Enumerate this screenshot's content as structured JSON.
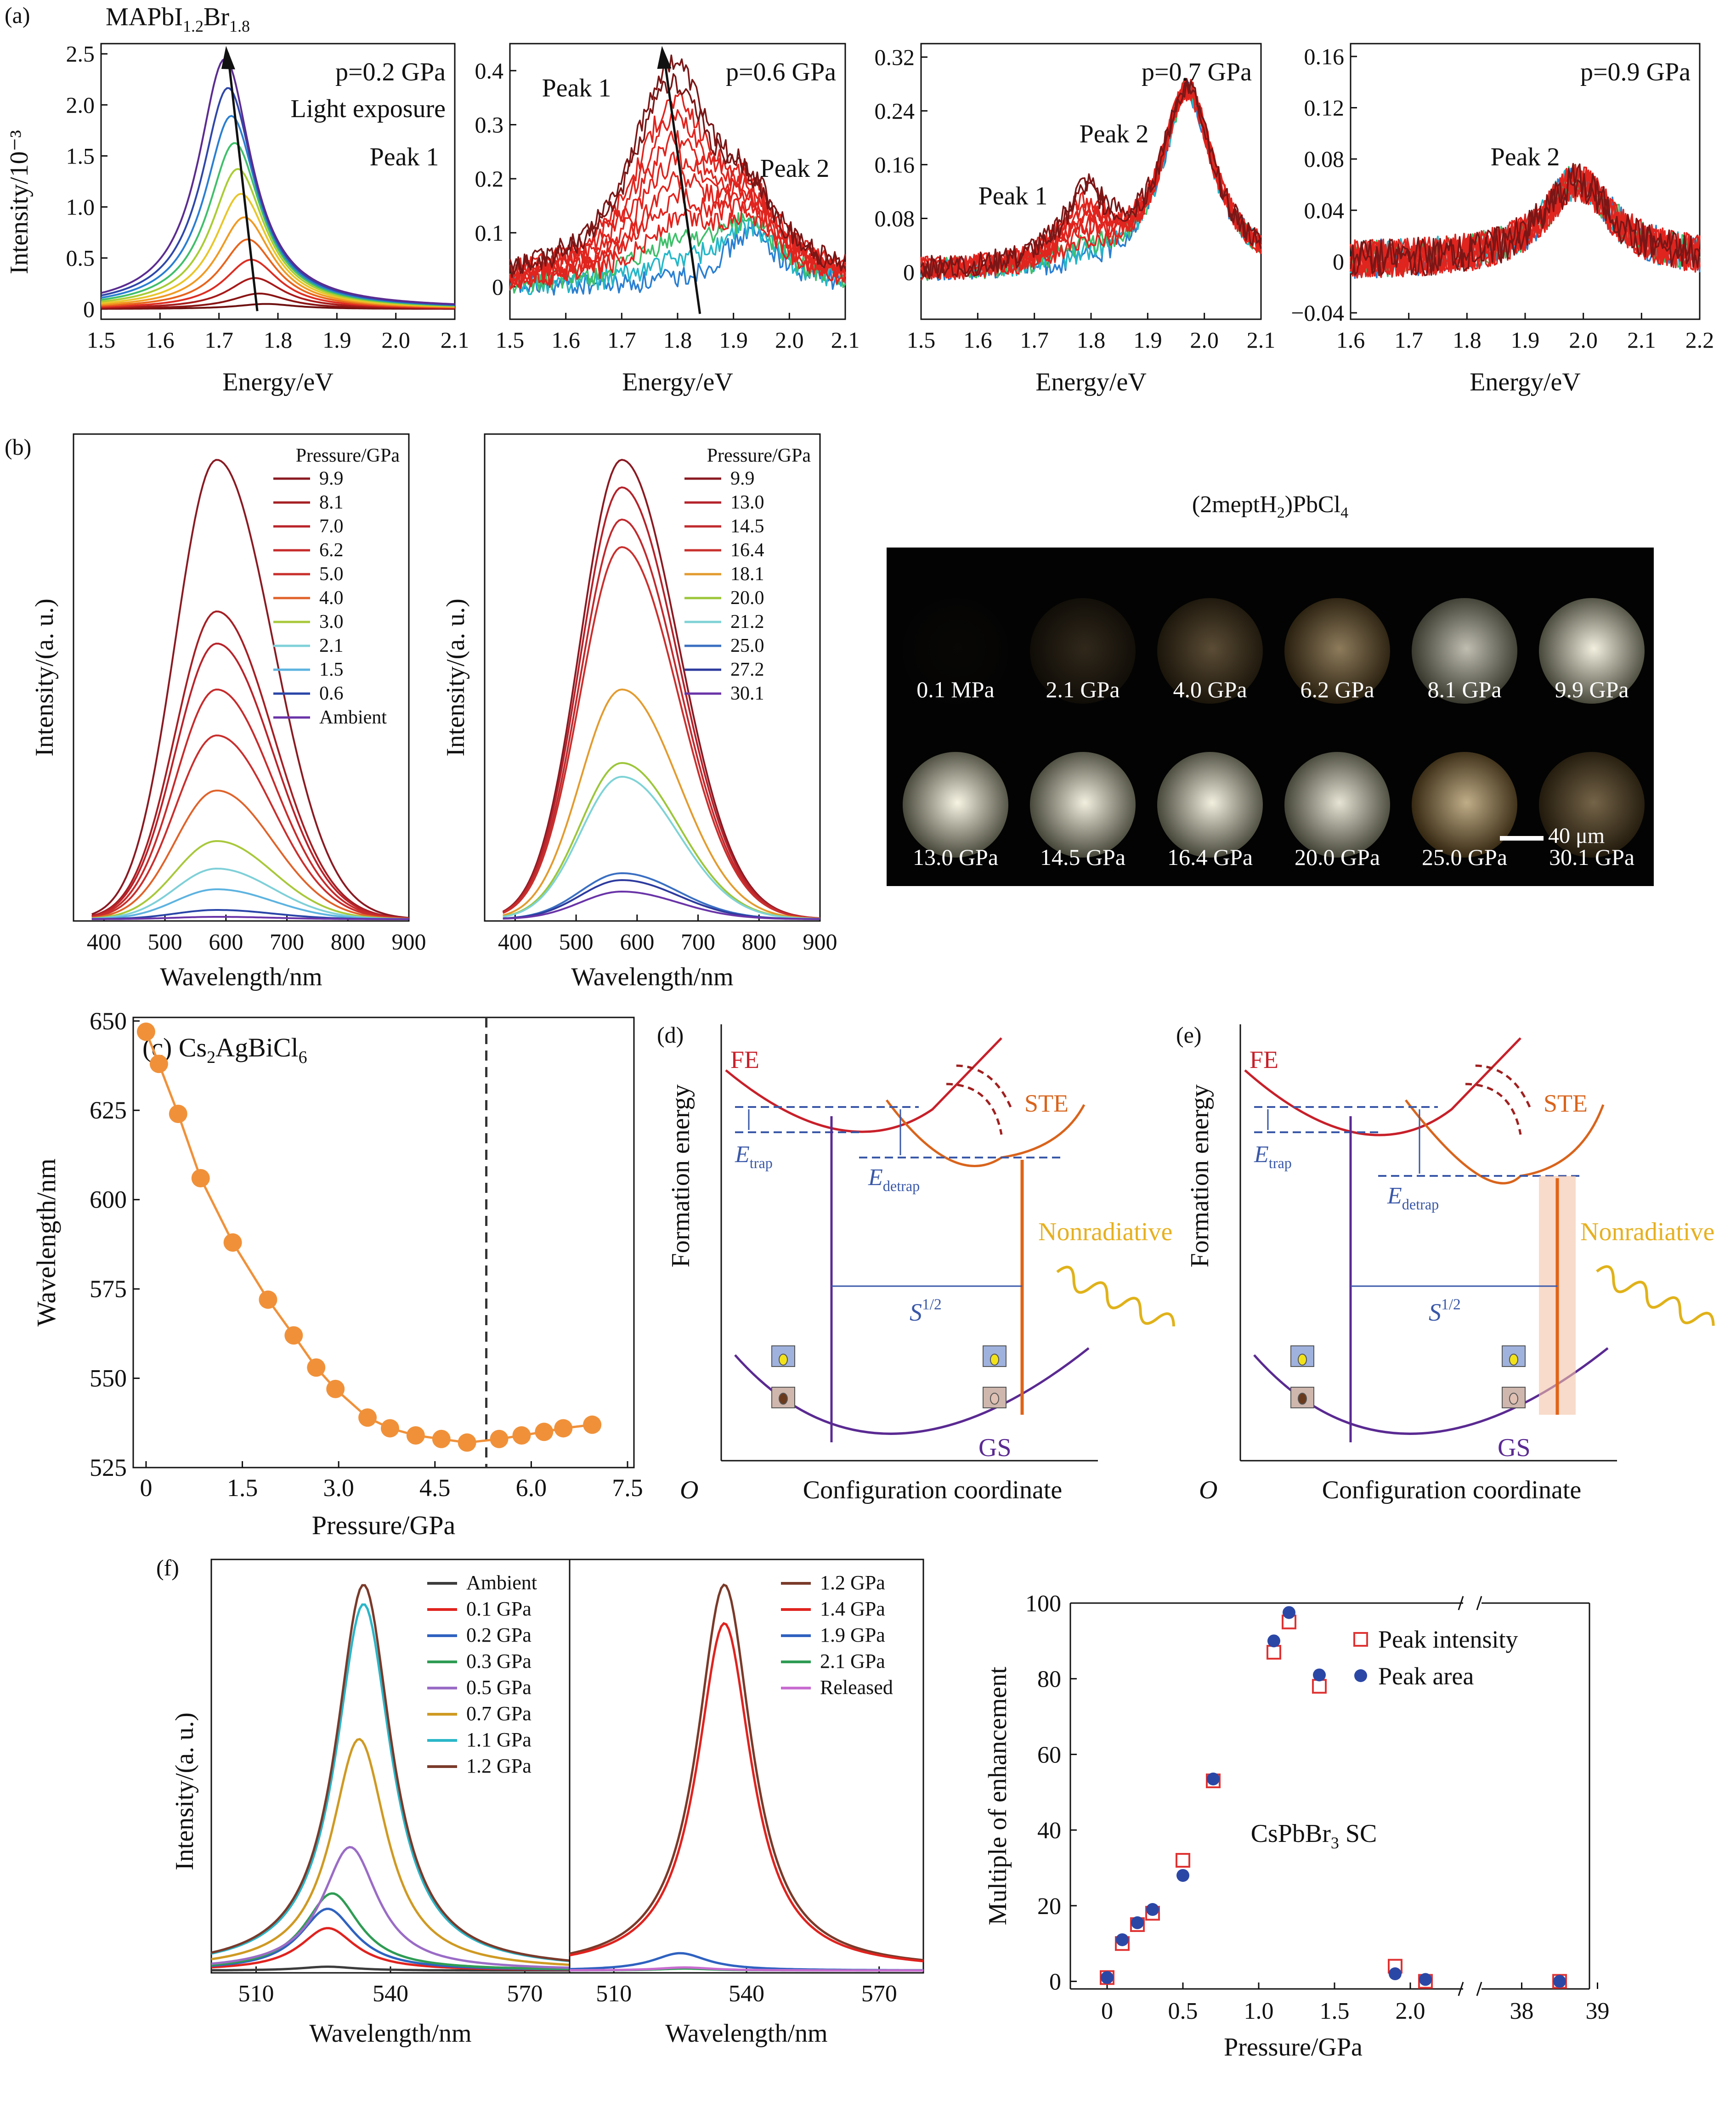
{
  "panel_labels": {
    "a": "(a)",
    "b": "(b)",
    "c": "(c) Cs₂AgBiCl₆",
    "d": "(d)",
    "e": "(e)",
    "f": "(f)"
  },
  "panel_a": {
    "material": "MAPbI₁.₂Br₁.₈",
    "ylabel": "Intensity/10⁻³",
    "xlabel": "Energy/eV",
    "subplots": [
      {
        "pressure": "p=0.2 GPa",
        "notes": [
          "Light exposure",
          "Peak 1"
        ],
        "xticks": [
          "1.5",
          "1.6",
          "1.7",
          "1.8",
          "1.9",
          "2.0",
          "2.1"
        ],
        "yticks": [
          "0",
          "0.5",
          "1.0",
          "1.5",
          "2.0",
          "2.5"
        ]
      },
      {
        "pressure": "p=0.6 GPa",
        "notes": [
          "Peak 1",
          "Peak 2"
        ],
        "xticks": [
          "1.5",
          "1.6",
          "1.7",
          "1.8",
          "1.9",
          "2.0",
          "2.1"
        ],
        "yticks": [
          "0",
          "0.1",
          "0.2",
          "0.3",
          "0.4"
        ]
      },
      {
        "pressure": "p=0.7 GPa",
        "notes": [
          "Peak 1",
          "Peak 2"
        ],
        "xticks": [
          "1.5",
          "1.6",
          "1.7",
          "1.8",
          "1.9",
          "2.0",
          "2.1"
        ],
        "yticks": [
          "0",
          "0.08",
          "0.16",
          "0.24",
          "0.32"
        ]
      },
      {
        "pressure": "p=0.9 GPa",
        "notes": [
          "Peak 2"
        ],
        "xticks": [
          "1.6",
          "1.7",
          "1.8",
          "1.9",
          "2.0",
          "2.1",
          "2.2"
        ],
        "yticks": [
          "−0.04",
          "0",
          "0.04",
          "0.08",
          "0.12",
          "0.16"
        ]
      }
    ]
  },
  "panel_b": {
    "ylabel": "Intensity/(a. u.)",
    "xlabel": "Wavelength/nm",
    "xticks": [
      "400",
      "500",
      "600",
      "700",
      "800",
      "900"
    ],
    "legend_title": "Pressure/GPa",
    "left_legend": [
      "9.9",
      "8.1",
      "7.0",
      "6.2",
      "5.0",
      "4.0",
      "3.0",
      "2.1",
      "1.5",
      "0.6",
      "Ambient"
    ],
    "right_legend": [
      "9.9",
      "13.0",
      "14.5",
      "16.4",
      "18.1",
      "20.0",
      "21.2",
      "25.0",
      "27.2",
      "30.1"
    ],
    "photo_title": "(2meptH₂)PbCl₄",
    "photo_captions": [
      "0.1 MPa",
      "2.1 GPa",
      "4.0 GPa",
      "6.2 GPa",
      "8.1 GPa",
      "9.9 GPa",
      "13.0 GPa",
      "14.5 GPa",
      "16.4 GPa",
      "20.0 GPa",
      "25.0 GPa",
      "30.1 GPa"
    ],
    "scale_bar": "40 μm"
  },
  "panel_c": {
    "ylabel": "Wavelength/nm",
    "xlabel": "Pressure/GPa",
    "xticks": [
      "0",
      "1.5",
      "3.0",
      "4.5",
      "6.0",
      "7.5"
    ],
    "yticks": [
      "525",
      "550",
      "575",
      "600",
      "625",
      "650"
    ]
  },
  "panel_de": {
    "ylabel": "Formation energy",
    "xlabel": "Configuration coordinate",
    "origin": "O",
    "fe": "FE",
    "ste": "STE",
    "gs": "GS",
    "etrap": "E",
    "etrap_sub": "trap",
    "edetrap": "E",
    "edetrap_sub": "detrap",
    "s": "S",
    "s_sup": "1/2",
    "nonrad": "Nonradiative"
  },
  "panel_f": {
    "ylabel": "Intensity/(a. u.)",
    "xlabel": "Wavelength/nm",
    "xticks": [
      "510",
      "540",
      "570"
    ],
    "left_legend": [
      "Ambient",
      "0.1 GPa",
      "0.2 GPa",
      "0.3 GPa",
      "0.5 GPa",
      "0.7 GPa",
      "1.1 GPa",
      "1.2 GPa"
    ],
    "right_legend": [
      "1.2 GPa",
      "1.4 GPa",
      "1.9 GPa",
      "2.1 GPa",
      "Released"
    ],
    "enh_ylabel": "Multiple of enhancement",
    "enh_xlabel": "Pressure/GPa",
    "enh_note": "CsPbBr₃ SC",
    "enh_legend": [
      "Peak intensity",
      "Peak area"
    ],
    "enh_xticks": [
      "0",
      "0.5",
      "1.0",
      "1.5",
      "2.0",
      "38",
      "39"
    ],
    "enh_yticks": [
      "0",
      "20",
      "40",
      "60",
      "80",
      "100"
    ]
  },
  "colors": {
    "fe": "#c8202a",
    "ste": "#d9641c",
    "gs": "#5a2a92",
    "trap": "#3a58a8",
    "nonrad": "#e6b020",
    "orange_pts": "#f0913a"
  },
  "chart_data": [
    {
      "type": "line",
      "title": "",
      "xlabel": "Energy/eV",
      "ylabel": "Intensity/10⁻³",
      "xlim": [
        1.5,
        2.1
      ],
      "ylim": [
        -0.1,
        2.6
      ],
      "series_note": "p=0.2 GPa, light exposure",
      "peak_energy_start": 1.71,
      "peak_energy_end": 1.77,
      "peak_max": 2.45
    },
    {
      "type": "line",
      "title": "",
      "xlabel": "Energy/eV",
      "ylabel": "Intensity/10⁻³",
      "xlim": [
        1.5,
        2.1
      ],
      "ylim": [
        -0.06,
        0.45
      ],
      "series_note": "p=0.6 GPa",
      "peak1_energy": 1.79,
      "peak1_max": 0.4,
      "peak2_energy": 1.93,
      "peak2_max": 0.1
    },
    {
      "type": "line",
      "title": "",
      "xlabel": "Energy/eV",
      "ylabel": "Intensity/10⁻³",
      "xlim": [
        1.5,
        2.1
      ],
      "ylim": [
        -0.07,
        0.34
      ],
      "series_note": "p=0.7 GPa",
      "peak1_energy": 1.79,
      "peak1_max": 0.11,
      "peak2_energy": 1.97,
      "peak2_max": 0.27
    },
    {
      "type": "line",
      "title": "",
      "xlabel": "Energy/eV",
      "ylabel": "Intensity/10⁻³",
      "xlim": [
        1.6,
        2.2
      ],
      "ylim": [
        -0.045,
        0.17
      ],
      "series_note": "p=0.9 GPa",
      "peak2_energy": 1.99,
      "peak2_max": 0.062
    },
    {
      "type": "line",
      "xlabel": "Wavelength/nm",
      "ylabel": "Intensity/(a. u.)",
      "xlim": [
        350,
        900
      ],
      "center_nm": 585,
      "series": [
        {
          "name": "9.9",
          "peak": 1.0
        },
        {
          "name": "8.1",
          "peak": 0.67
        },
        {
          "name": "7.0",
          "peak": 0.6
        },
        {
          "name": "6.2",
          "peak": 0.5
        },
        {
          "name": "5.0",
          "peak": 0.4
        },
        {
          "name": "4.0",
          "peak": 0.28
        },
        {
          "name": "3.0",
          "peak": 0.17
        },
        {
          "name": "2.1",
          "peak": 0.11
        },
        {
          "name": "1.5",
          "peak": 0.065
        },
        {
          "name": "0.6",
          "peak": 0.02
        },
        {
          "name": "Ambient",
          "peak": 0.005
        }
      ]
    },
    {
      "type": "line",
      "xlabel": "Wavelength/nm",
      "ylabel": "Intensity/(a. u.)",
      "xlim": [
        350,
        900
      ],
      "center_nm": 575,
      "series": [
        {
          "name": "9.9",
          "peak": 1.0
        },
        {
          "name": "13.0",
          "peak": 0.94
        },
        {
          "name": "14.5",
          "peak": 0.87
        },
        {
          "name": "16.4",
          "peak": 0.81
        },
        {
          "name": "18.1",
          "peak": 0.5
        },
        {
          "name": "20.0",
          "peak": 0.34
        },
        {
          "name": "21.2",
          "peak": 0.31
        },
        {
          "name": "25.0",
          "peak": 0.1
        },
        {
          "name": "27.2",
          "peak": 0.085
        },
        {
          "name": "30.1",
          "peak": 0.06
        }
      ]
    },
    {
      "type": "scatter",
      "title": "Cs₂AgBiCl₆",
      "xlabel": "Pressure/GPa",
      "ylabel": "Wavelength/nm",
      "xlim": [
        -0.2,
        7.6
      ],
      "ylim": [
        525,
        651
      ],
      "vline": 5.3,
      "x": [
        0,
        0.2,
        0.5,
        0.85,
        1.35,
        1.9,
        2.3,
        2.65,
        2.95,
        3.45,
        3.8,
        4.2,
        4.6,
        5.0,
        5.5,
        5.85,
        6.2,
        6.5,
        6.95
      ],
      "y": [
        647,
        638,
        624,
        606,
        588,
        572,
        562,
        553,
        547,
        539,
        536,
        534,
        533,
        532,
        533,
        534,
        535,
        536,
        537
      ]
    },
    {
      "type": "line",
      "xlabel": "Wavelength/nm",
      "ylabel": "Intensity/(a. u.)",
      "xlim": [
        500,
        580
      ],
      "series": [
        {
          "name": "Ambient",
          "center": 526,
          "peak": 0.01
        },
        {
          "name": "0.1 GPa",
          "center": 526,
          "peak": 0.11
        },
        {
          "name": "0.2 GPa",
          "center": 526,
          "peak": 0.16
        },
        {
          "name": "0.3 GPa",
          "center": 527,
          "peak": 0.2
        },
        {
          "name": "0.5 GPa",
          "center": 531,
          "peak": 0.32
        },
        {
          "name": "0.7 GPa",
          "center": 533,
          "peak": 0.6
        },
        {
          "name": "1.1 GPa",
          "center": 534,
          "peak": 0.95
        },
        {
          "name": "1.2 GPa",
          "center": 534,
          "peak": 1.0
        }
      ]
    },
    {
      "type": "line",
      "xlabel": "Wavelength/nm",
      "ylabel": "Intensity/(a. u.)",
      "xlim": [
        500,
        580
      ],
      "series": [
        {
          "name": "1.2 GPa",
          "center": 535,
          "peak": 1.0
        },
        {
          "name": "1.4 GPa",
          "center": 535,
          "peak": 0.9
        },
        {
          "name": "1.9 GPa",
          "center": 525,
          "peak": 0.045
        },
        {
          "name": "2.1 GPa",
          "center": 526,
          "peak": 0.005
        },
        {
          "name": "Released",
          "center": 526,
          "peak": 0.008
        }
      ]
    },
    {
      "type": "scatter",
      "title": "CsPbBr₃ SC",
      "xlabel": "Pressure/GPa",
      "ylabel": "Multiple of enhancement",
      "ylim": [
        -2,
        100
      ],
      "x": [
        "0",
        "0.1",
        "0.2",
        "0.3",
        "0.5",
        "0.7",
        "1.1",
        "1.2",
        "1.4",
        "1.9",
        "2.1",
        "38.5"
      ],
      "series": [
        {
          "name": "Peak intensity",
          "values": [
            1,
            10,
            15,
            18,
            32,
            53,
            87,
            95,
            78,
            4,
            0,
            0
          ]
        },
        {
          "name": "Peak area",
          "values": [
            1,
            11,
            15.5,
            19,
            28,
            53.5,
            90,
            97.5,
            81,
            2,
            0.5,
            0
          ]
        }
      ]
    }
  ]
}
